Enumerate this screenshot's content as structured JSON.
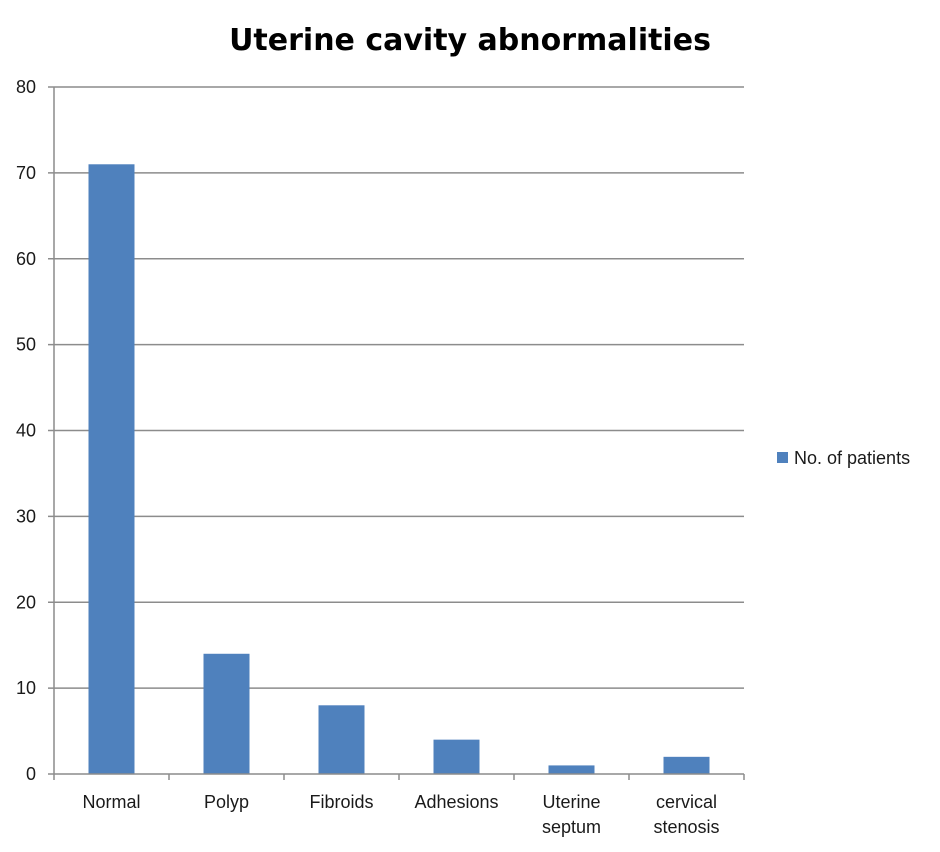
{
  "chart_data": {
    "type": "bar",
    "title": "Uterine cavity abnormalities",
    "categories": [
      "Normal",
      "Polyp",
      "Fibroids",
      "Adhesions",
      "Uterine septum",
      "cervical stenosis"
    ],
    "category_lines": [
      [
        "Normal"
      ],
      [
        "Polyp"
      ],
      [
        "Fibroids"
      ],
      [
        "Adhesions"
      ],
      [
        "Uterine",
        "septum"
      ],
      [
        "cervical",
        "stenosis"
      ]
    ],
    "series": [
      {
        "name": "No. of patients",
        "values": [
          71,
          14,
          8,
          4,
          1,
          2
        ],
        "color": "#4f81bd"
      }
    ],
    "ylim": [
      0,
      80
    ],
    "yticks": [
      "0",
      "10",
      "20",
      "30",
      "40",
      "50",
      "60",
      "70",
      "80"
    ],
    "grid": true,
    "legend": "right",
    "gridline_color": "#8c8c8c",
    "axis_color": "#8c8c8c"
  }
}
